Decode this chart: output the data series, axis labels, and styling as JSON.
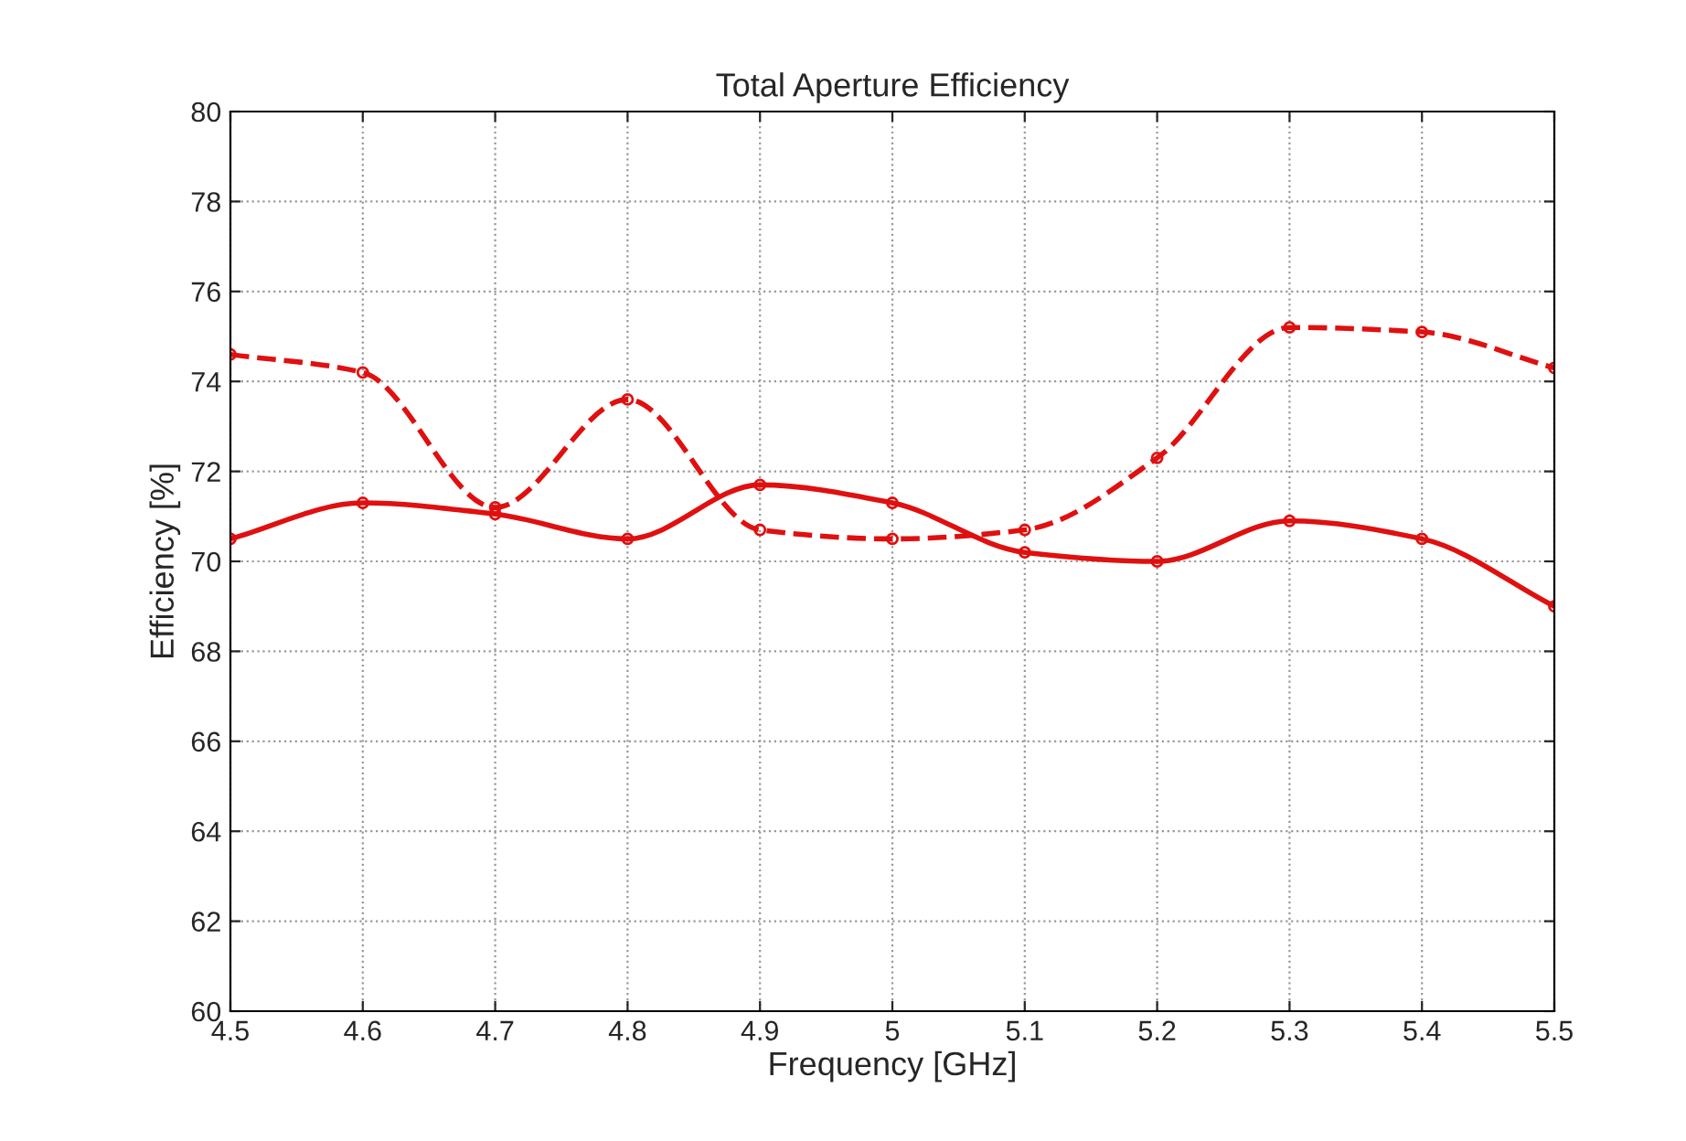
{
  "chart_data": {
    "type": "line",
    "title": "Total Aperture Efficiency",
    "xlabel": "Frequency [GHz]",
    "ylabel": "Efficiency [%]",
    "x": [
      4.5,
      4.6,
      4.7,
      4.8,
      4.9,
      5.0,
      5.1,
      5.2,
      5.3,
      5.4,
      5.5
    ],
    "series": [
      {
        "color": "#e01010",
        "line_style": "solid",
        "values": [
          70.5,
          71.3,
          71.05,
          70.5,
          71.7,
          71.3,
          70.2,
          70.0,
          70.9,
          70.5,
          69.0
        ]
      },
      {
        "color": "#e01010",
        "line_style": "dashed",
        "values": [
          74.6,
          74.2,
          71.2,
          73.6,
          70.7,
          70.5,
          70.7,
          72.3,
          75.2,
          75.1,
          74.3
        ]
      }
    ],
    "xlim": [
      4.5,
      5.5
    ],
    "xticks": [
      4.5,
      4.6,
      4.7,
      4.8,
      4.9,
      5,
      5.1,
      5.2,
      5.3,
      5.4,
      5.5
    ],
    "ylim": [
      60,
      80
    ],
    "yticks": [
      60,
      62,
      64,
      66,
      68,
      70,
      72,
      74,
      76,
      78,
      80
    ],
    "grid": true,
    "marker": "circle"
  }
}
